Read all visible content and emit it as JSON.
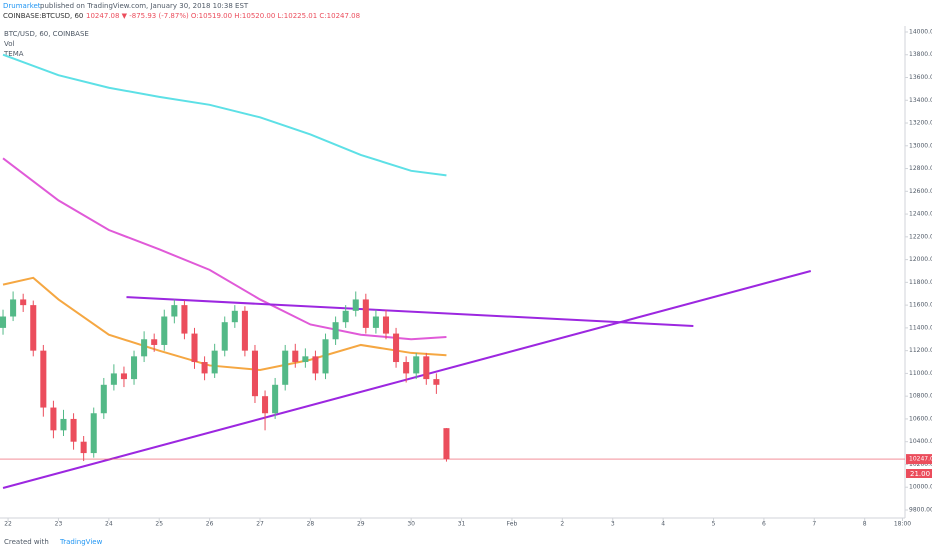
{
  "header": {
    "author": "Drumarket",
    "published": "published on TradingView.com, January 30, 2018 10:38 EST",
    "symbol": "COINBASE:BTCUSD, 60",
    "quote": "10247.08 ▼ -875.93 (-7.87%) O:10519.00 H:10520.00 L:10225.01 C:10247.08"
  },
  "legend": [
    "BTC/USD, 60, COINBASE",
    "Vol",
    "TEMA"
  ],
  "volume_label": "21.00",
  "footer": {
    "created": "Created with",
    "brand": "TradingView"
  },
  "chart_data": {
    "type": "candlestick",
    "up_color": "#53b987",
    "down_color": "#eb4d5c",
    "last_price_color": "#eb4d5c",
    "x": [
      -0.1,
      0.1,
      0.3,
      0.5,
      0.7,
      0.9,
      1.1,
      1.3,
      1.5,
      1.7,
      1.9,
      2.1,
      2.3,
      2.5,
      2.7,
      2.9,
      3.1,
      3.3,
      3.5,
      3.7,
      3.9,
      4.1,
      4.3,
      4.5,
      4.7,
      4.9,
      5.1,
      5.3,
      5.5,
      5.7,
      5.9,
      6.1,
      6.3,
      6.5,
      6.7,
      6.9,
      7.1,
      7.3,
      7.5,
      7.7,
      7.9,
      8.1,
      8.3,
      8.5,
      8.7
    ],
    "open": [
      11400,
      11500,
      11650,
      11600,
      11200,
      10700,
      10500,
      10600,
      10400,
      10300,
      10650,
      10900,
      11000,
      10950,
      11150,
      11300,
      11250,
      11500,
      11600,
      11350,
      11100,
      11000,
      11200,
      11450,
      11550,
      11200,
      10800,
      10650,
      10900,
      11200,
      11100,
      11150,
      11000,
      11300,
      11450,
      11550,
      11650,
      11400,
      11500,
      11350,
      11100,
      11000,
      11150,
      10950,
      10519
    ],
    "high": [
      11560,
      11720,
      11700,
      11640,
      11250,
      10760,
      10680,
      10650,
      10450,
      10700,
      10960,
      11080,
      11060,
      11200,
      11370,
      11350,
      11560,
      11650,
      11640,
      11400,
      11150,
      11260,
      11500,
      11600,
      11590,
      11250,
      10850,
      10960,
      11250,
      11260,
      11220,
      11200,
      11350,
      11500,
      11600,
      11720,
      11700,
      11560,
      11560,
      11400,
      11150,
      11180,
      11180,
      11000,
      10520
    ],
    "low": [
      11340,
      11460,
      11540,
      11150,
      10620,
      10430,
      10450,
      10330,
      10230,
      10260,
      10600,
      10850,
      10880,
      10900,
      11100,
      11190,
      11200,
      11440,
      11300,
      11040,
      10940,
      10960,
      11150,
      11400,
      11150,
      10740,
      10500,
      10600,
      10850,
      11050,
      11050,
      10940,
      10950,
      11250,
      11400,
      11500,
      11350,
      11350,
      11300,
      11050,
      10920,
      10950,
      10900,
      10820,
      10225.01
    ],
    "close": [
      11500,
      11650,
      11600,
      11200,
      10700,
      10500,
      10600,
      10400,
      10300,
      10650,
      10900,
      11000,
      10950,
      11150,
      11300,
      11250,
      11500,
      11600,
      11350,
      11100,
      11000,
      11200,
      11450,
      11550,
      11200,
      10800,
      10650,
      10900,
      11200,
      11100,
      11150,
      11000,
      11300,
      11450,
      11550,
      11650,
      11400,
      11500,
      11350,
      11100,
      11000,
      11150,
      10950,
      10900,
      10247.08
    ],
    "series": [
      {
        "color": "#5de0e6",
        "x": [
          -0.1,
          1,
          2,
          3,
          4,
          5,
          6,
          7,
          8,
          8.7
        ],
        "values": [
          13800,
          13620,
          13510,
          13430,
          13360,
          13250,
          13100,
          12920,
          12780,
          12740
        ]
      },
      {
        "color": "#e05ad8",
        "x": [
          -0.1,
          1,
          2,
          3,
          4,
          5,
          6,
          7,
          8,
          8.7
        ],
        "values": [
          12890,
          12520,
          12260,
          12090,
          11910,
          11650,
          11430,
          11340,
          11300,
          11320
        ]
      },
      {
        "color": "#f5a742",
        "x": [
          -0.1,
          0.5,
          1,
          2,
          3,
          4,
          5,
          6,
          7,
          8,
          8.7
        ],
        "values": [
          11780,
          11840,
          11650,
          11340,
          11200,
          11070,
          11030,
          11120,
          11250,
          11180,
          11160
        ]
      },
      {
        "color": "#9c27e0",
        "x": [
          2.35,
          13.6
        ],
        "values": [
          11670,
          11417
        ]
      },
      {
        "color": "#9c27e0",
        "x": [
          -0.1,
          15.93
        ],
        "values": [
          9993,
          11900
        ]
      }
    ],
    "xlim": [
      -0.16,
      17.8
    ],
    "ylim": [
      9712,
      14281
    ],
    "xticks": [
      {
        "value": 0,
        "label": "22"
      },
      {
        "value": 1,
        "label": "23"
      },
      {
        "value": 2,
        "label": "24"
      },
      {
        "value": 3,
        "label": "25"
      },
      {
        "value": 4,
        "label": "26"
      },
      {
        "value": 5,
        "label": "27"
      },
      {
        "value": 6,
        "label": "28"
      },
      {
        "value": 7,
        "label": "29"
      },
      {
        "value": 8,
        "label": "30"
      },
      {
        "value": 9,
        "label": "31"
      },
      {
        "value": 10,
        "label": "Feb"
      },
      {
        "value": 11,
        "label": "2"
      },
      {
        "value": 12,
        "label": "3"
      },
      {
        "value": 13,
        "label": "4"
      },
      {
        "value": 14,
        "label": "5"
      },
      {
        "value": 15,
        "label": "6"
      },
      {
        "value": 16,
        "label": "7"
      },
      {
        "value": 17,
        "label": "8"
      },
      {
        "value": 17.75,
        "label": "18:00"
      }
    ],
    "yticks": [
      {
        "value": 9800,
        "label": "9800.00"
      },
      {
        "value": 10000,
        "label": "10000.00"
      },
      {
        "value": 10200,
        "label": "10200.00"
      },
      {
        "value": 10400,
        "label": "10400.00"
      },
      {
        "value": 10600,
        "label": "10600.00"
      },
      {
        "value": 10800,
        "label": "10800.00"
      },
      {
        "value": 11000,
        "label": "11000.00"
      },
      {
        "value": 11200,
        "label": "11200.00"
      },
      {
        "value": 11400,
        "label": "11400.00"
      },
      {
        "value": 11600,
        "label": "11600.00"
      },
      {
        "value": 11800,
        "label": "11800.00"
      },
      {
        "value": 12000,
        "label": "12000.00"
      },
      {
        "value": 12200,
        "label": "12200.00"
      },
      {
        "value": 12400,
        "label": "12400.00"
      },
      {
        "value": 12600,
        "label": "12600.00"
      },
      {
        "value": 12800,
        "label": "12800.00"
      },
      {
        "value": 13000,
        "label": "13000.00"
      },
      {
        "value": 13200,
        "label": "13200.00"
      },
      {
        "value": 13400,
        "label": "13400.00"
      },
      {
        "value": 13600,
        "label": "13600.00"
      },
      {
        "value": 13800,
        "label": "13800.00"
      },
      {
        "value": 14000,
        "label": "14000.00"
      }
    ]
  }
}
